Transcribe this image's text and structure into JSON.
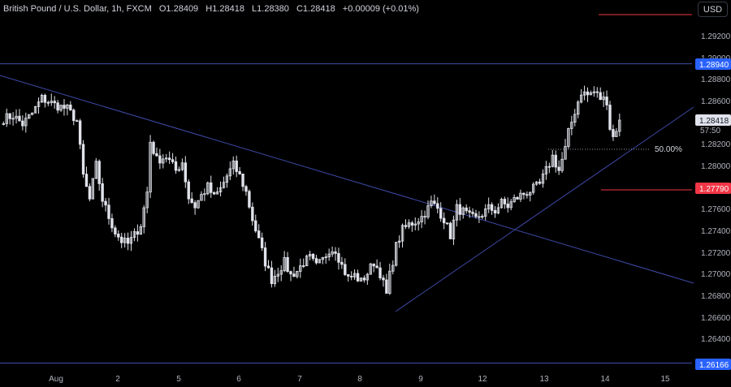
{
  "header": {
    "symbol": "British Pound / U.S. Dollar, 1h, FXCM",
    "open": "O1.28409",
    "high": "H1.28418",
    "low": "L1.28380",
    "close": "C1.28418",
    "change": "+0.00009 (+0.01%)"
  },
  "currency_button": "USD",
  "countdown": "57:50",
  "colors": {
    "background": "#000000",
    "candle": "#e0e3eb",
    "trendline": "#3f4aa8",
    "horizontal_line": "#3f4aa8",
    "red_level": "#f23645",
    "blue_label": "#2962ff",
    "grid_text": "#b2b5be"
  },
  "chart_data": {
    "type": "candlestick",
    "symbol": "GBPUSD",
    "timeframe": "1h",
    "x_tick_labels": [
      "Aug",
      "2",
      "5",
      "6",
      "7",
      "8",
      "9",
      "12",
      "13",
      "14",
      "15"
    ],
    "y_tick_labels": [
      "1.29200",
      "1.29000",
      "1.28800",
      "1.28600",
      "1.28200",
      "1.28000",
      "1.27600",
      "1.27400",
      "1.27200",
      "1.27000",
      "1.26800",
      "1.26600",
      "1.26400"
    ],
    "ylim": [
      1.2605,
      1.2935
    ],
    "price_labels": [
      {
        "value": "1.28940",
        "kind": "horizontal-line"
      },
      {
        "value": "1.28418",
        "kind": "last-price"
      },
      {
        "value": "1.27790",
        "kind": "red-level"
      },
      {
        "value": "1.26166",
        "kind": "horizontal-line"
      }
    ],
    "horizontal_levels": {
      "resistance": 1.2894,
      "support": 1.26166,
      "red_level": 1.2779
    },
    "fib_level": {
      "label": "50.00%",
      "value": 1.2815
    },
    "price_path": [
      [
        0,
        1.2843
      ],
      [
        3,
        1.2846
      ],
      [
        6,
        1.2838
      ],
      [
        9,
        1.2848
      ],
      [
        12,
        1.2862
      ],
      [
        16,
        1.2856
      ],
      [
        20,
        1.2852
      ],
      [
        23,
        1.2841
      ],
      [
        25,
        1.279
      ],
      [
        27,
        1.2768
      ],
      [
        29,
        1.28
      ],
      [
        31,
        1.2768
      ],
      [
        33,
        1.2752
      ],
      [
        35,
        1.2738
      ],
      [
        37,
        1.273
      ],
      [
        39,
        1.2727
      ],
      [
        41,
        1.2735
      ],
      [
        43,
        1.2745
      ],
      [
        45,
        1.2775
      ],
      [
        46,
        1.2822
      ],
      [
        48,
        1.2805
      ],
      [
        51,
        1.2808
      ],
      [
        54,
        1.2795
      ],
      [
        56,
        1.2803
      ],
      [
        58,
        1.277
      ],
      [
        60,
        1.2762
      ],
      [
        62,
        1.2772
      ],
      [
        64,
        1.278
      ],
      [
        66,
        1.277
      ],
      [
        68,
        1.2778
      ],
      [
        70,
        1.279
      ],
      [
        72,
        1.28
      ],
      [
        74,
        1.279
      ],
      [
        76,
        1.2775
      ],
      [
        78,
        1.275
      ],
      [
        80,
        1.273
      ],
      [
        82,
        1.271
      ],
      [
        84,
        1.2694
      ],
      [
        86,
        1.2702
      ],
      [
        88,
        1.271
      ],
      [
        90,
        1.2698
      ],
      [
        92,
        1.2702
      ],
      [
        94,
        1.271
      ],
      [
        96,
        1.2714
      ],
      [
        98,
        1.2706
      ],
      [
        100,
        1.2712
      ],
      [
        102,
        1.2722
      ],
      [
        104,
        1.2722
      ],
      [
        106,
        1.2707
      ],
      [
        108,
        1.2695
      ],
      [
        110,
        1.2698
      ],
      [
        112,
        1.2692
      ],
      [
        114,
        1.27
      ],
      [
        116,
        1.271
      ],
      [
        118,
        1.27
      ],
      [
        120,
        1.268
      ],
      [
        121,
        1.2698
      ],
      [
        123,
        1.2725
      ],
      [
        125,
        1.274
      ],
      [
        127,
        1.2745
      ],
      [
        129,
        1.2748
      ],
      [
        131,
        1.2752
      ],
      [
        133,
        1.276
      ],
      [
        134,
        1.2765
      ],
      [
        136,
        1.276
      ],
      [
        138,
        1.275
      ],
      [
        140,
        1.2735
      ],
      [
        142,
        1.276
      ],
      [
        144,
        1.2757
      ],
      [
        146,
        1.2752
      ],
      [
        148,
        1.275
      ],
      [
        150,
        1.2755
      ],
      [
        152,
        1.276
      ],
      [
        154,
        1.2758
      ],
      [
        156,
        1.2765
      ],
      [
        158,
        1.2762
      ],
      [
        160,
        1.2768
      ],
      [
        162,
        1.2772
      ],
      [
        164,
        1.2775
      ],
      [
        166,
        1.2778
      ],
      [
        168,
        1.2782
      ],
      [
        170,
        1.2795
      ],
      [
        172,
        1.2808
      ],
      [
        174,
        1.2795
      ],
      [
        176,
        1.2815
      ],
      [
        177,
        1.283
      ],
      [
        179,
        1.285
      ],
      [
        181,
        1.2868
      ],
      [
        183,
        1.2865
      ],
      [
        185,
        1.2868
      ],
      [
        187,
        1.2862
      ],
      [
        189,
        1.286
      ],
      [
        190,
        1.2835
      ],
      [
        191,
        1.2826
      ],
      [
        193,
        1.2842
      ]
    ]
  }
}
